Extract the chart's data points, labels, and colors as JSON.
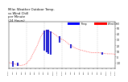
{
  "title": "Milw. Weather Outdoor Temp.\nvs Wind Chill\nper Minute\n(24 Hours)",
  "title_fontsize": 2.8,
  "bg_color": "#ffffff",
  "temp_color": "#0000cc",
  "windchill_color": "#ff0000",
  "grid_color": "#aaaaaa",
  "ylim": [
    -20,
    60
  ],
  "xlim": [
    0,
    1440
  ],
  "wc_dots_x": [
    0,
    30,
    60,
    90,
    120,
    150,
    180,
    210,
    240,
    270,
    300,
    330,
    360,
    390,
    420,
    450,
    480,
    510,
    540,
    570,
    600,
    630,
    660,
    690,
    720,
    750,
    780,
    810,
    840,
    870,
    900,
    960,
    1020,
    1080,
    1140,
    1200,
    1260,
    1320,
    1380,
    1440
  ],
  "wc_dots_y": [
    -10,
    -11,
    -12,
    -13,
    -14,
    -15,
    -15,
    -14,
    -12,
    -8,
    -3,
    5,
    12,
    20,
    30,
    38,
    43,
    45,
    44,
    43,
    41,
    38,
    35,
    32,
    30,
    28,
    25,
    22,
    20,
    17,
    15,
    12,
    10,
    8,
    7,
    7,
    6,
    5,
    5,
    4
  ],
  "bar_data": [
    {
      "x": 60,
      "y_low": -18,
      "y_high": -8
    },
    {
      "x": 120,
      "y_low": -16,
      "y_high": -10
    },
    {
      "x": 480,
      "y_low": 10,
      "y_high": 45
    },
    {
      "x": 510,
      "y_low": 8,
      "y_high": 47
    },
    {
      "x": 540,
      "y_low": 5,
      "y_high": 46
    },
    {
      "x": 570,
      "y_low": 3,
      "y_high": 44
    },
    {
      "x": 690,
      "y_low": 25,
      "y_high": 35
    },
    {
      "x": 840,
      "y_low": 15,
      "y_high": 22
    },
    {
      "x": 1260,
      "y_low": 3,
      "y_high": 8
    }
  ],
  "ytick_vals": [
    50,
    40,
    30,
    20,
    10,
    0,
    -10
  ],
  "ytick_labels": [
    "50",
    "40",
    "30",
    "20",
    "10",
    "0",
    "-10"
  ],
  "xtick_step": 60,
  "legend_temp_label": "Temp",
  "legend_wc_label": "Wind Chill"
}
